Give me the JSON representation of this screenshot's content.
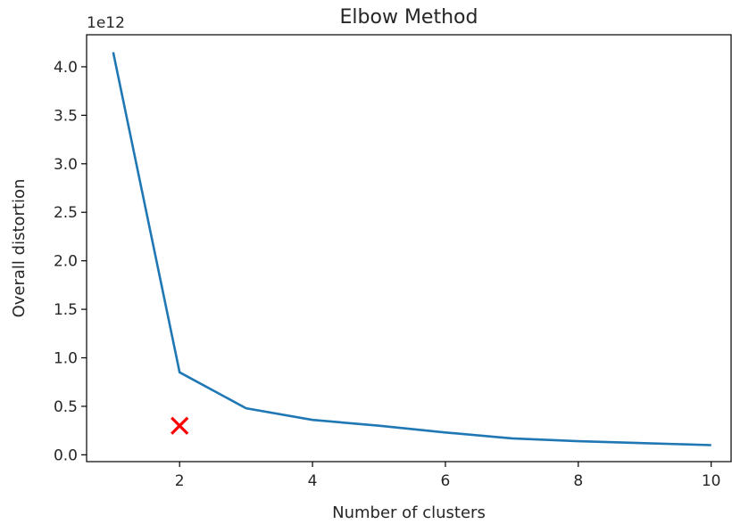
{
  "chart_data": {
    "type": "line",
    "title": "Elbow Method",
    "xlabel": "Number of clusters",
    "ylabel": "Overall distortion",
    "y_offset_label": "1e12",
    "xlim": [
      0.6,
      10.3
    ],
    "ylim": [
      -0.07,
      4.33
    ],
    "x_ticks": [
      2,
      4,
      6,
      8,
      10
    ],
    "x_tick_labels": [
      "2",
      "4",
      "6",
      "8",
      "10"
    ],
    "y_ticks": [
      0.0,
      0.5,
      1.0,
      1.5,
      2.0,
      2.5,
      3.0,
      3.5,
      4.0
    ],
    "y_tick_labels": [
      "0.0",
      "0.5",
      "1.0",
      "1.5",
      "2.0",
      "2.5",
      "3.0",
      "3.5",
      "4.0"
    ],
    "grid": false,
    "series": [
      {
        "color": "#1f77b4",
        "x": [
          1,
          2,
          3,
          4,
          5,
          6,
          7,
          8,
          9,
          10
        ],
        "y": [
          4.15,
          0.85,
          0.48,
          0.36,
          0.3,
          0.23,
          0.17,
          0.14,
          0.12,
          0.1
        ]
      }
    ],
    "marker": {
      "x": 2,
      "y": 0.3,
      "symbol": "x",
      "color": "#ff0000"
    }
  }
}
